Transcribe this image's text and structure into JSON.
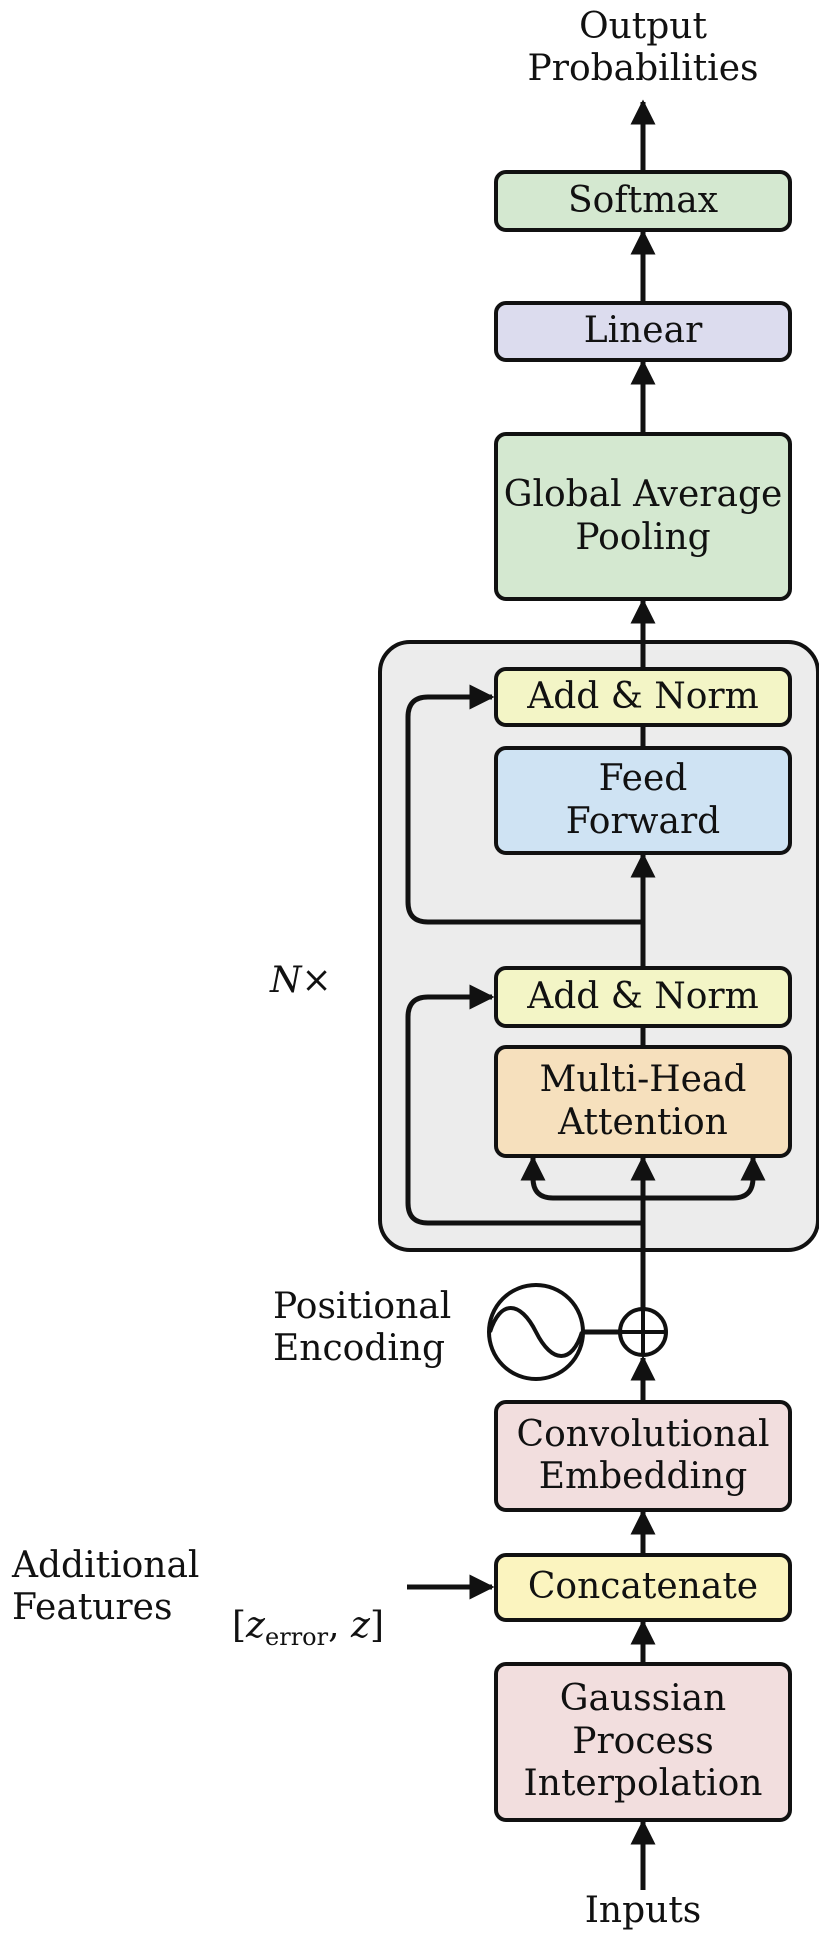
{
  "title": {
    "output": "Output\nProbabilities",
    "inputs": "Inputs"
  },
  "blocks": {
    "softmax": "Softmax",
    "linear": "Linear",
    "gap": "Global Average\nPooling",
    "add_norm_top": "Add & Norm",
    "feed_forward": "Feed\nForward",
    "add_norm_bottom": "Add & Norm",
    "mha": "Multi-Head\nAttention",
    "conv_embed": "Convolutional\nEmbedding",
    "concatenate": "Concatenate",
    "gp_interp": "Gaussian\nProcess\nInterpolation"
  },
  "labels": {
    "nx_n": "N",
    "nx_times": "×",
    "positional": "Positional\nEncoding",
    "additional": "Additional\nFeatures",
    "features_open": "[",
    "features_z1": "z",
    "features_sub": "error",
    "features_sep": ", ",
    "features_z2": "z",
    "features_close": "]"
  },
  "colors": {
    "softmax": "#d4e8d0",
    "linear": "#dcdcee",
    "gap": "#d4e8d0",
    "add_norm": "#f3f5c6",
    "feed_forward": "#cfe3f3",
    "mha": "#f6e0bd",
    "conv_embed": "#f2dede",
    "concatenate": "#fbf4bf",
    "gp_interp": "#f2dede",
    "encoder_bg": "#ececec"
  }
}
